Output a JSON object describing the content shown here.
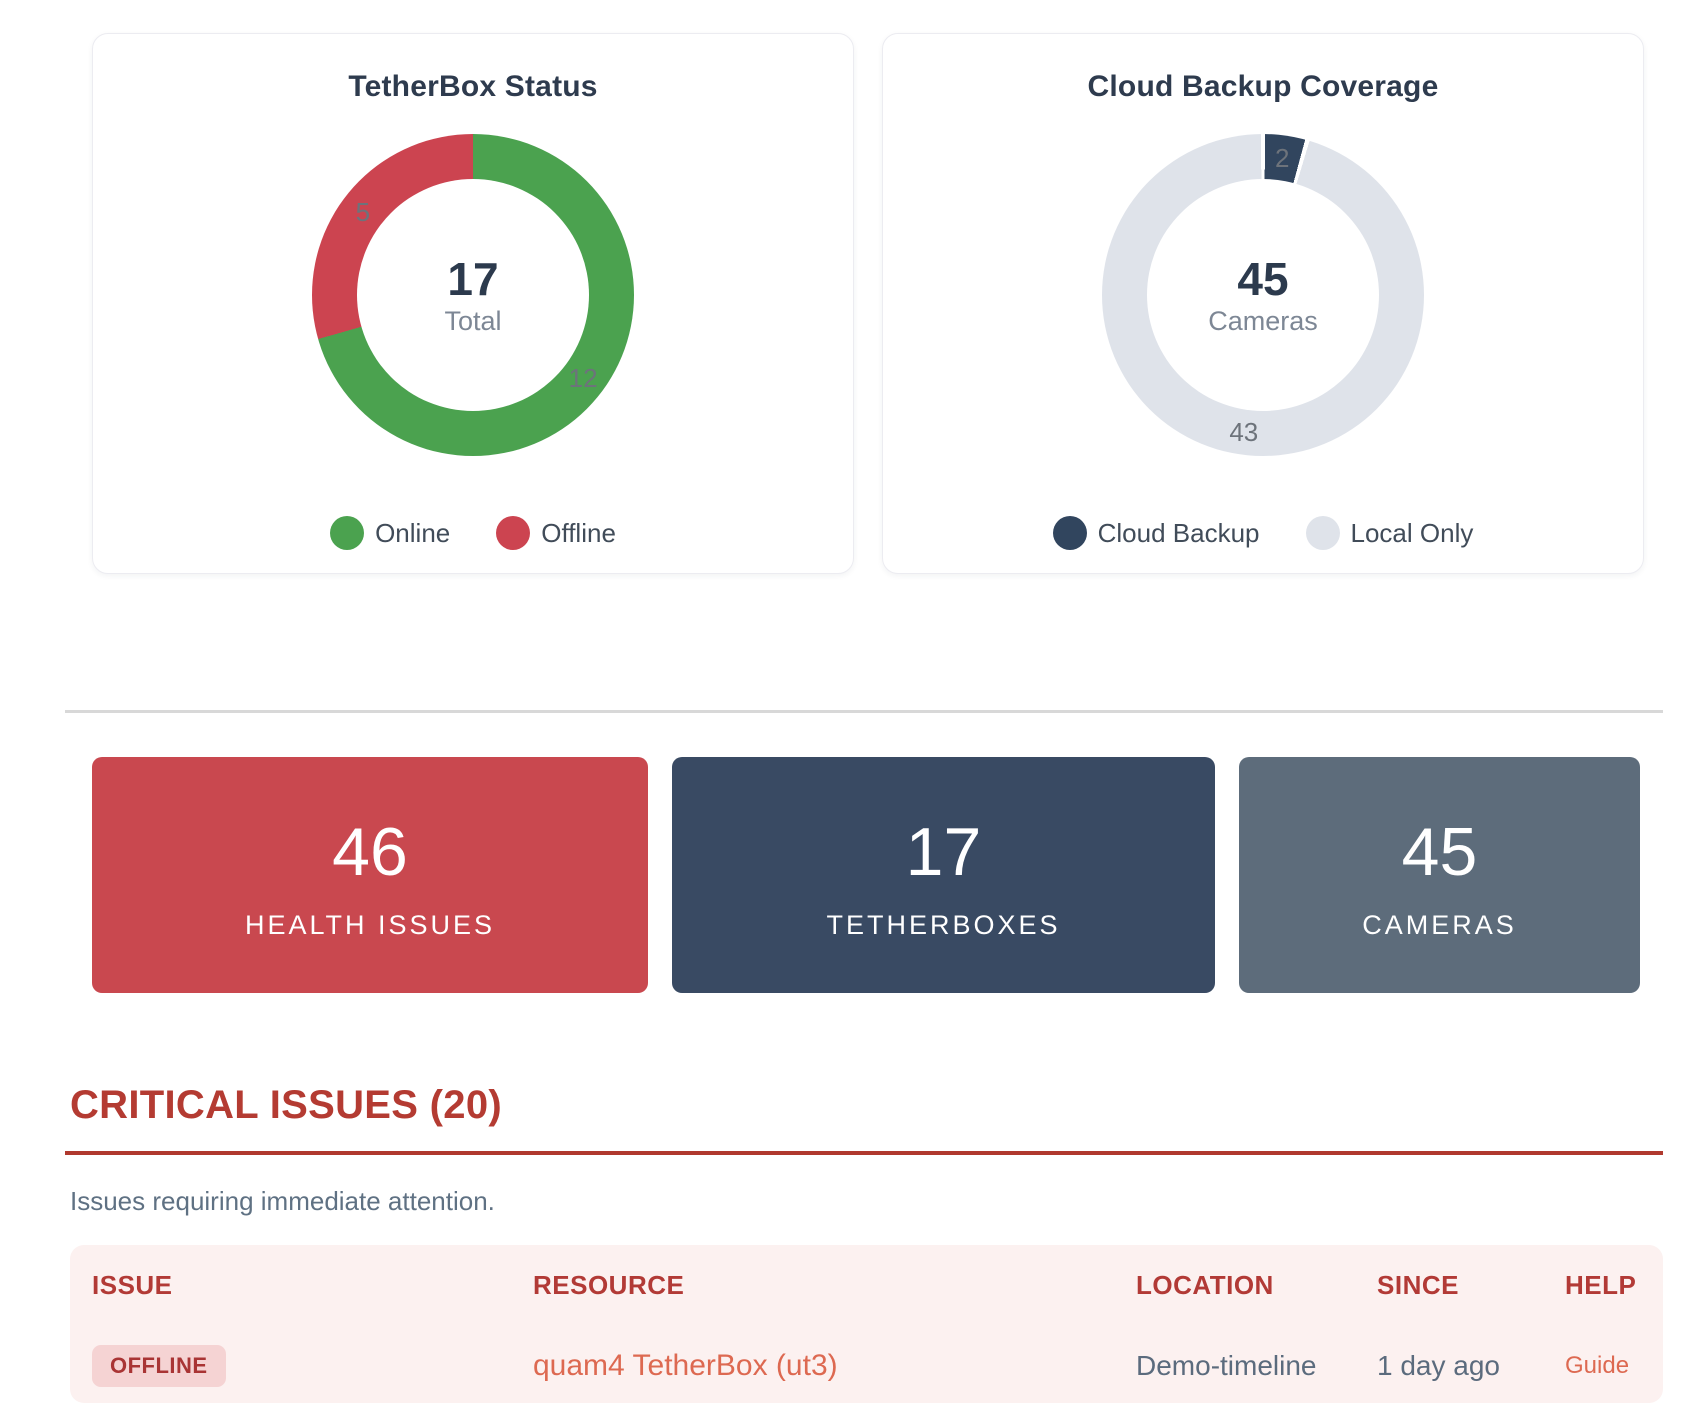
{
  "palette": {
    "online_green": "#4ba24f",
    "offline_red": "#cc4450",
    "cloud_navy": "#31455e",
    "local_light": "#dfe3ea",
    "health_red": "#c9484f",
    "tetherbox_navy": "#394a63",
    "cameras_slate": "#5d6c7b",
    "heading_red": "#b43b32",
    "link_orange": "#dd6951",
    "panel_pink": "#fcf1f0"
  },
  "chart_data": [
    {
      "type": "donut",
      "title": "TetherBox Status",
      "center": {
        "value": "17",
        "label": "Total"
      },
      "segments": [
        {
          "label": "Online",
          "value": 12,
          "color": "#4ba24f"
        },
        {
          "label": "Offline",
          "value": 5,
          "color": "#cc4450"
        }
      ],
      "segment_border_deg": 0,
      "legend_position": "bottom"
    },
    {
      "type": "donut",
      "title": "Cloud Backup Coverage",
      "center": {
        "value": "45",
        "label": "Cameras"
      },
      "segments": [
        {
          "label": "Cloud Backup",
          "value": 2,
          "color": "#31455e"
        },
        {
          "label": "Local Only",
          "value": 43,
          "color": "#dfe3ea"
        }
      ],
      "segment_border_deg": 1.6,
      "legend_position": "bottom"
    }
  ],
  "stats": [
    {
      "value": "46",
      "label": "HEALTH ISSUES",
      "color": "#c9484f"
    },
    {
      "value": "17",
      "label": "TETHERBOXES",
      "color": "#394a63"
    },
    {
      "value": "45",
      "label": "CAMERAS",
      "color": "#5d6c7b"
    }
  ],
  "critical_issues": {
    "heading": "CRITICAL ISSUES (20)",
    "subheading": "Issues requiring immediate attention.",
    "table": {
      "headers": [
        "ISSUE",
        "RESOURCE",
        "LOCATION",
        "SINCE",
        "HELP"
      ],
      "rows": [
        {
          "issue": "OFFLINE",
          "resource": "quam4 TetherBox (ut3)",
          "location": "Demo-timeline",
          "since": "1 day ago",
          "help": "Guide"
        }
      ]
    }
  }
}
